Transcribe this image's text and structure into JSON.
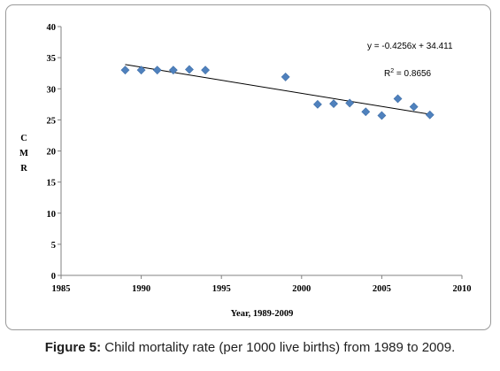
{
  "chart_data": {
    "type": "scatter",
    "xlabel": "Year, 1989-2009",
    "ylabel": "CMR",
    "xlim": [
      1985,
      2010
    ],
    "ylim": [
      0,
      40
    ],
    "x_ticks": [
      1985,
      1990,
      1995,
      2000,
      2005,
      2010
    ],
    "y_ticks": [
      0,
      5,
      10,
      15,
      20,
      25,
      30,
      35,
      40
    ],
    "grid": false,
    "point_color": "#4f81bd",
    "points": [
      {
        "x": 1989,
        "y": 33.0
      },
      {
        "x": 1990,
        "y": 33.0
      },
      {
        "x": 1991,
        "y": 33.0
      },
      {
        "x": 1992,
        "y": 33.0
      },
      {
        "x": 1993,
        "y": 33.1
      },
      {
        "x": 1994,
        "y": 33.0
      },
      {
        "x": 1999,
        "y": 31.9
      },
      {
        "x": 2001,
        "y": 27.5
      },
      {
        "x": 2002,
        "y": 27.6
      },
      {
        "x": 2003,
        "y": 27.7
      },
      {
        "x": 2004,
        "y": 26.3
      },
      {
        "x": 2005,
        "y": 25.7
      },
      {
        "x": 2006,
        "y": 28.4
      },
      {
        "x": 2007,
        "y": 27.1
      },
      {
        "x": 2008,
        "y": 25.8
      }
    ],
    "trendline": {
      "type": "linear",
      "x_range": [
        1989,
        2008
      ],
      "y_range": [
        33.9,
        25.9
      ],
      "equation": "y = -0.4256x + 34.411",
      "r_squared_label": "R",
      "r_squared_sup": "2",
      "r_squared_value": " = 0.8656"
    }
  },
  "caption": {
    "label": "Figure 5:",
    "text": " Child mortality rate (per 1000 live births) from 1989 to 2009."
  }
}
